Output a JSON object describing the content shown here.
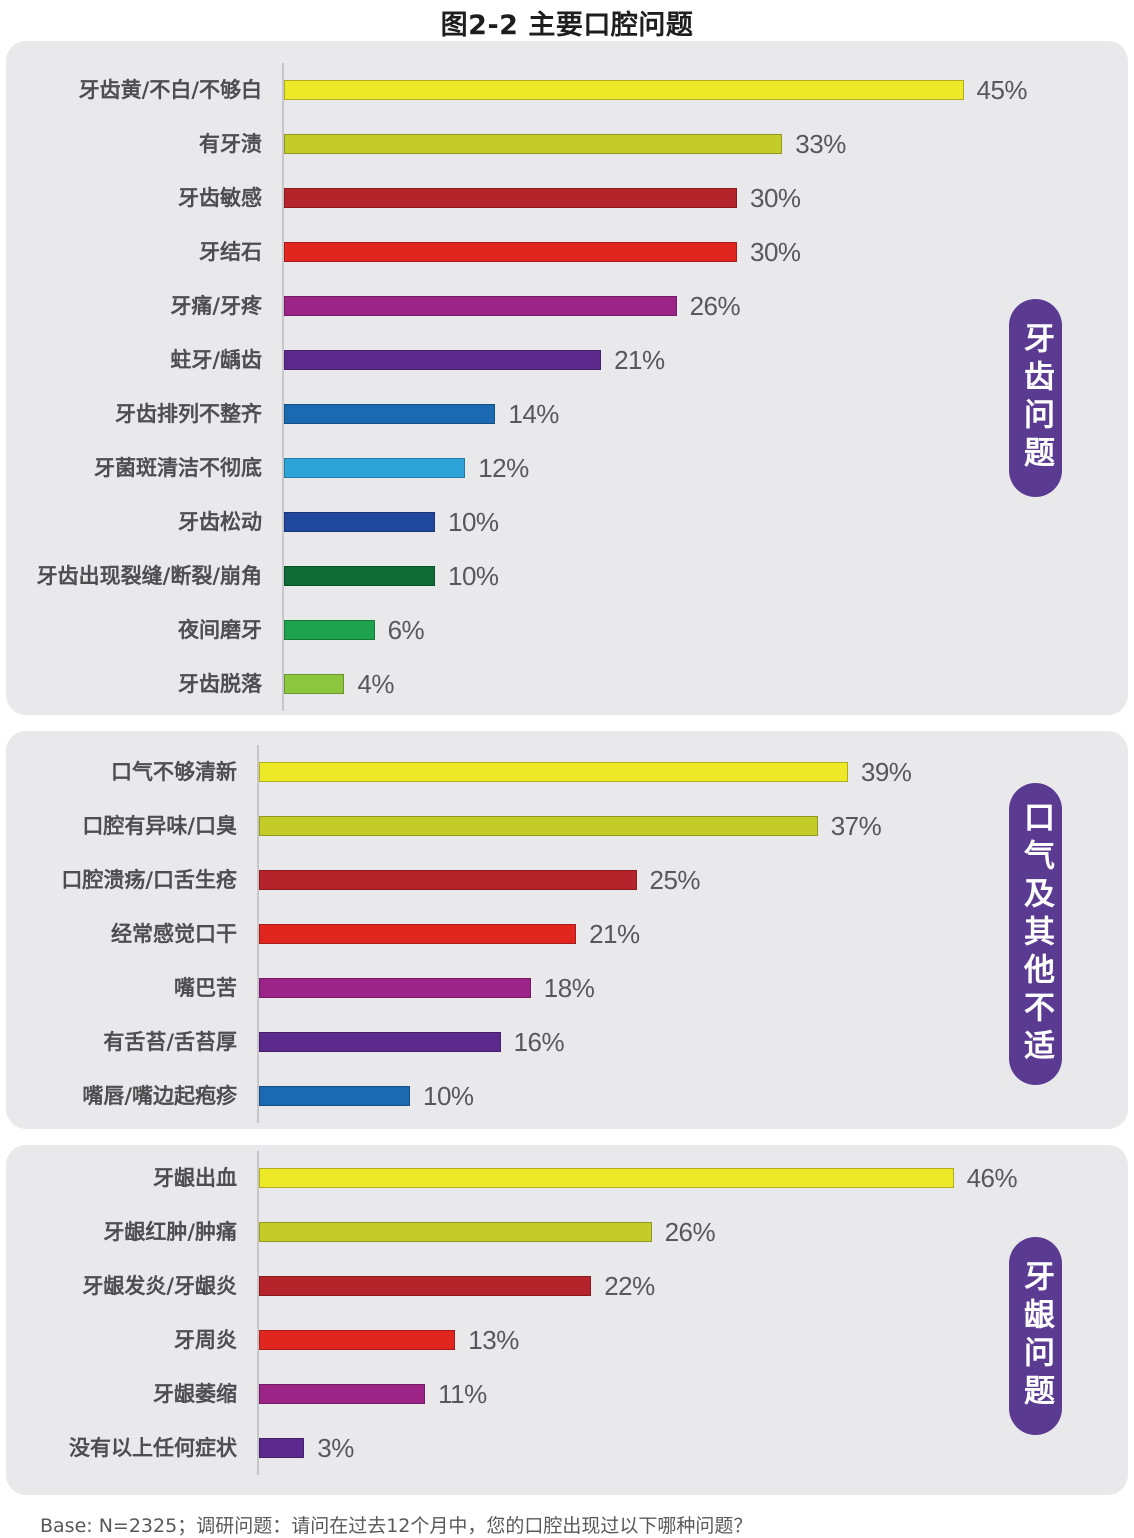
{
  "title": "图2-2 主要口腔问题",
  "footer": "Base: N=2325；调研问题：请问在过去12个月中，您的口腔出现过以下哪种问题？",
  "badge_color": "#5b3b92",
  "panel_bg": "#e9e9eb",
  "value_unit": "%",
  "chart_data": [
    {
      "type": "bar",
      "orientation": "horizontal",
      "group": "牙齿问题",
      "unit": "%",
      "xlim": [
        0,
        50
      ],
      "grid": false,
      "categories": [
        "牙齿黄/不白/不够白",
        "有牙渍",
        "牙齿敏感",
        "牙结石",
        "牙痛/牙疼",
        "蛀牙/龋齿",
        "牙齿排列不整齐",
        "牙菌斑清洁不彻底",
        "牙齿松动",
        "牙齿出现裂缝/断裂/崩角",
        "夜间磨牙",
        "牙齿脱落"
      ],
      "values": [
        45,
        33,
        30,
        30,
        26,
        21,
        14,
        12,
        10,
        10,
        6,
        4
      ],
      "value_labels": [
        "45%",
        "33%",
        "30%",
        "30%",
        "26%",
        "21%",
        "14%",
        "12%",
        "10%",
        "10%",
        "6%",
        "4%"
      ],
      "colors": [
        "#ede929",
        "#c3cc29",
        "#b4242a",
        "#e0261f",
        "#9c2487",
        "#5c2a8c",
        "#1b6ab1",
        "#2ea3d8",
        "#20489e",
        "#0e6b35",
        "#1ea24e",
        "#8cc63e"
      ]
    },
    {
      "type": "bar",
      "orientation": "horizontal",
      "group": "口气及其他不适",
      "unit": "%",
      "xlim": [
        0,
        50
      ],
      "grid": false,
      "categories": [
        "口气不够清新",
        "口腔有异味/口臭",
        "口腔溃疡/口舌生疮",
        "经常感觉口干",
        "嘴巴苦",
        "有舌苔/舌苔厚",
        "嘴唇/嘴边起疱疹"
      ],
      "values": [
        39,
        37,
        25,
        21,
        18,
        16,
        10
      ],
      "value_labels": [
        "39%",
        "37%",
        "25%",
        "21%",
        "18%",
        "16%",
        "10%"
      ],
      "colors": [
        "#ede929",
        "#c3cc29",
        "#b4242a",
        "#e0261f",
        "#9c2487",
        "#5c2a8c",
        "#1b6ab1"
      ]
    },
    {
      "type": "bar",
      "orientation": "horizontal",
      "group": "牙龈问题",
      "unit": "%",
      "xlim": [
        0,
        50
      ],
      "grid": false,
      "categories": [
        "牙龈出血",
        "牙龈红肿/肿痛",
        "牙龈发炎/牙龈炎",
        "牙周炎",
        "牙龈萎缩",
        "没有以上任何症状"
      ],
      "values": [
        46,
        26,
        22,
        13,
        11,
        3
      ],
      "value_labels": [
        "46%",
        "26%",
        "22%",
        "13%",
        "11%",
        "3%"
      ],
      "colors": [
        "#ede929",
        "#c3cc29",
        "#b4242a",
        "#e0261f",
        "#9c2487",
        "#5c2a8c"
      ]
    }
  ]
}
